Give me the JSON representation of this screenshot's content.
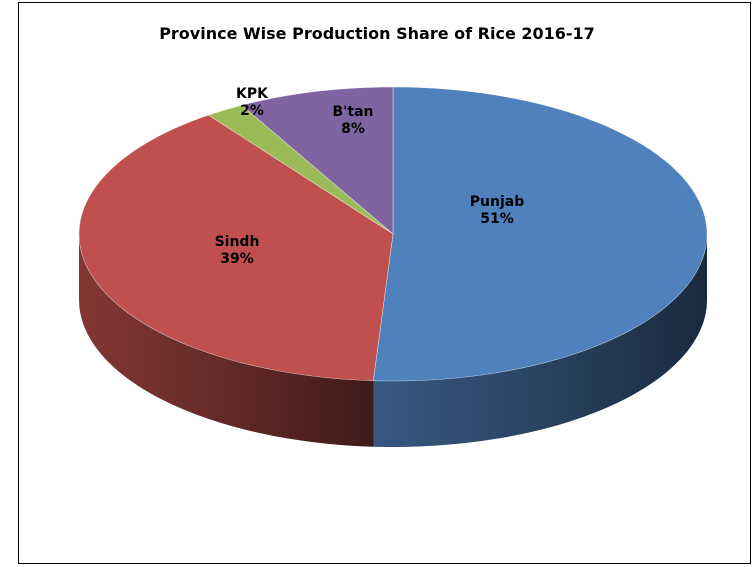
{
  "chart_data": {
    "type": "pie",
    "title": "Province Wise Production Share of Rice 2016-17",
    "three_d": true,
    "categories": [
      "Punjab",
      "Sindh",
      "KPK",
      "B'tan"
    ],
    "values": [
      51,
      39,
      2,
      8
    ],
    "labels": [
      {
        "name": "Punjab",
        "value": "51%"
      },
      {
        "name": "Sindh",
        "value": "39%"
      },
      {
        "name": "KPK",
        "value": "2%"
      },
      {
        "name": "B'tan",
        "value": "8%"
      }
    ],
    "colors": {
      "Punjab": "#4f81bd",
      "Sindh": "#c0504d",
      "KPK": "#9bbb59",
      "B'tan": "#8064a2"
    },
    "legend": "none"
  }
}
